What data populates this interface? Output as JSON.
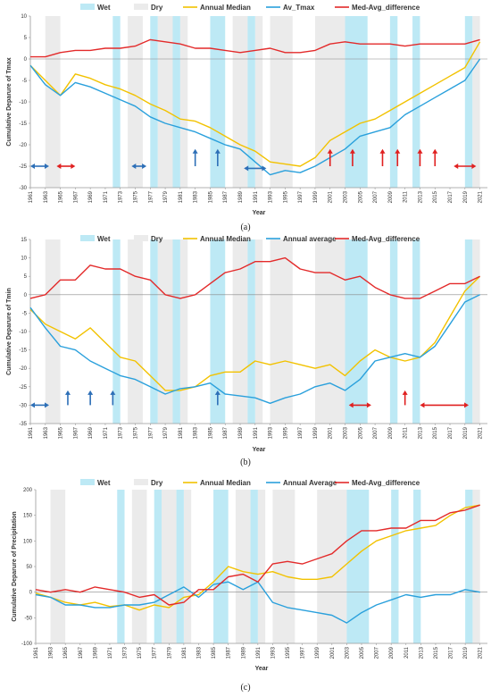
{
  "colors": {
    "wet": "#bde9f5",
    "dry": "#ebebeb",
    "median": "#f2c200",
    "average": "#2aa0dc",
    "difference": "#e32a2a",
    "blue_arrow": "#2d6fb7",
    "red_arrow": "#e02020"
  },
  "periods": {
    "wet": [
      [
        1972,
        1973
      ],
      [
        1977,
        1978
      ],
      [
        1980,
        1981
      ],
      [
        1985,
        1987
      ],
      [
        1990,
        1991
      ],
      [
        2003,
        2006
      ],
      [
        2009,
        2010
      ],
      [
        2012,
        2013
      ],
      [
        2019,
        2020
      ]
    ],
    "dry": [
      [
        1963,
        1965
      ],
      [
        1974,
        1976
      ],
      [
        1978,
        1980
      ],
      [
        1981,
        1982
      ],
      [
        1988,
        1990
      ],
      [
        1991,
        1992
      ],
      [
        1993,
        1996
      ],
      [
        1999,
        2003
      ],
      [
        2020,
        2021
      ]
    ]
  },
  "chart_data": [
    {
      "type": "line",
      "caption": "(a)",
      "ylabel": "Cumulative Deparure of Tmax",
      "xlabel": "Year",
      "ylim": [
        -30,
        10
      ],
      "yticks": [
        -30,
        -25,
        -20,
        -15,
        -10,
        -5,
        0,
        5,
        10
      ],
      "xlim": [
        1961,
        2022
      ],
      "xticks": [
        1961,
        1963,
        1965,
        1967,
        1969,
        1971,
        1973,
        1975,
        1977,
        1979,
        1981,
        1983,
        1985,
        1987,
        1989,
        1991,
        1993,
        1995,
        1997,
        1999,
        2001,
        2003,
        2005,
        2007,
        2009,
        2011,
        2013,
        2015,
        2017,
        2019,
        2021
      ],
      "legend": [
        "Wet",
        "Dry",
        "Annual Median",
        "Av_Tmax",
        "Med-Avg_difference"
      ],
      "x": [
        1961,
        1963,
        1965,
        1967,
        1969,
        1971,
        1973,
        1975,
        1977,
        1979,
        1981,
        1983,
        1985,
        1987,
        1989,
        1991,
        1993,
        1995,
        1997,
        1999,
        2001,
        2003,
        2005,
        2007,
        2009,
        2011,
        2013,
        2015,
        2017,
        2019,
        2021
      ],
      "series": [
        {
          "name": "Annual Median",
          "key": "median",
          "values": [
            -1.5,
            -5,
            -8.5,
            -3.5,
            -4.5,
            -6,
            -7,
            -8.5,
            -10.5,
            -12,
            -14,
            -14.5,
            -16,
            -18,
            -20,
            -21.5,
            -24,
            -24.5,
            -25,
            -23,
            -19,
            -17,
            -15,
            -14,
            -12,
            -10,
            -8,
            -6,
            -4,
            -2,
            4
          ]
        },
        {
          "name": "Av_Tmax",
          "key": "average",
          "values": [
            -1.5,
            -6,
            -8.5,
            -5.5,
            -6.5,
            -8,
            -9.5,
            -11,
            -13.5,
            -15,
            -16,
            -17,
            -18.5,
            -20,
            -21,
            -24,
            -27,
            -26,
            -26.5,
            -25,
            -23,
            -21,
            -18,
            -17,
            -16,
            -13,
            -11,
            -9,
            -7,
            -5,
            0
          ]
        },
        {
          "name": "Med-Avg_difference",
          "key": "difference",
          "values": [
            0.5,
            0.5,
            1.5,
            2,
            2,
            2.5,
            2.5,
            3,
            4.5,
            4,
            3.5,
            2.5,
            2.5,
            2,
            1.5,
            2,
            2.5,
            1.5,
            1.5,
            2,
            3.5,
            4,
            3.5,
            3.5,
            3.5,
            3,
            3.5,
            3.5,
            3.5,
            3.5,
            4.5
          ]
        }
      ],
      "arrows": [
        {
          "type": "h",
          "x1": 1961,
          "x2": 1963.5,
          "y": -25,
          "color": "blue_arrow",
          "both": true
        },
        {
          "type": "h",
          "x1": 1964.5,
          "x2": 1967,
          "y": -25,
          "color": "red_arrow",
          "both": true
        },
        {
          "type": "h",
          "x1": 1974.5,
          "x2": 1976.5,
          "y": -25,
          "color": "blue_arrow",
          "both": true
        },
        {
          "type": "v",
          "x": 1983,
          "y1": -25,
          "y2": -21,
          "color": "blue_arrow"
        },
        {
          "type": "v",
          "x": 1986,
          "y1": -25,
          "y2": -21,
          "color": "blue_arrow"
        },
        {
          "type": "h",
          "x1": 1989.5,
          "x2": 1992.5,
          "y": -25.5,
          "color": "blue_arrow",
          "both": true
        },
        {
          "type": "v",
          "x": 2001,
          "y1": -25,
          "y2": -21,
          "color": "red_arrow"
        },
        {
          "type": "v",
          "x": 2004,
          "y1": -25,
          "y2": -21,
          "color": "red_arrow"
        },
        {
          "type": "v",
          "x": 2008,
          "y1": -25,
          "y2": -21,
          "color": "red_arrow"
        },
        {
          "type": "v",
          "x": 2010,
          "y1": -25,
          "y2": -21,
          "color": "red_arrow"
        },
        {
          "type": "v",
          "x": 2013,
          "y1": -25,
          "y2": -21,
          "color": "red_arrow"
        },
        {
          "type": "v",
          "x": 2015,
          "y1": -25,
          "y2": -21,
          "color": "red_arrow"
        },
        {
          "type": "h",
          "x1": 2017.5,
          "x2": 2020.5,
          "y": -25,
          "color": "red_arrow",
          "both": true
        }
      ]
    },
    {
      "type": "line",
      "caption": "(b)",
      "ylabel": "Cumulative Deparure of Tmin",
      "xlabel": "Year",
      "ylim": [
        -35,
        15
      ],
      "yticks": [
        -35,
        -30,
        -25,
        -20,
        -15,
        -10,
        -5,
        0,
        5,
        10,
        15
      ],
      "xlim": [
        1961,
        2022
      ],
      "xticks": [
        1961,
        1963,
        1965,
        1967,
        1969,
        1971,
        1973,
        1975,
        1977,
        1979,
        1981,
        1983,
        1985,
        1987,
        1989,
        1991,
        1993,
        1995,
        1997,
        1999,
        2001,
        2003,
        2005,
        2007,
        2009,
        2011,
        2013,
        2015,
        2017,
        2019,
        2021
      ],
      "legend": [
        "Wet",
        "Dry",
        "Annual Median",
        "Annual average",
        "Med-Avg_difference"
      ],
      "x": [
        1961,
        1963,
        1965,
        1967,
        1969,
        1971,
        1973,
        1975,
        1977,
        1979,
        1981,
        1983,
        1985,
        1987,
        1989,
        1991,
        1993,
        1995,
        1997,
        1999,
        2001,
        2003,
        2005,
        2007,
        2009,
        2011,
        2013,
        2015,
        2017,
        2019,
        2021
      ],
      "series": [
        {
          "name": "Annual Median",
          "key": "median",
          "values": [
            -4,
            -8,
            -10,
            -12,
            -9,
            -13,
            -17,
            -18,
            -22,
            -26,
            -26,
            -25,
            -22,
            -21,
            -21,
            -18,
            -19,
            -18,
            -19,
            -20,
            -19,
            -22,
            -18,
            -15,
            -17,
            -18,
            -17,
            -13,
            -6,
            1,
            5
          ]
        },
        {
          "name": "Annual average",
          "key": "average",
          "values": [
            -3.5,
            -9,
            -14,
            -15,
            -18,
            -20,
            -22,
            -23,
            -25,
            -27,
            -25.5,
            -25,
            -24,
            -27,
            -27.5,
            -28,
            -29.5,
            -28,
            -27,
            -25,
            -24,
            -26,
            -23,
            -18,
            -17,
            -16,
            -17,
            -14,
            -8,
            -2,
            0
          ]
        },
        {
          "name": "Med-Avg_difference",
          "key": "difference",
          "values": [
            -1,
            0,
            4,
            4,
            8,
            7,
            7,
            5,
            4,
            0,
            -1,
            0,
            3,
            6,
            7,
            9,
            9,
            10,
            7,
            6,
            6,
            4,
            5,
            2,
            0,
            -1,
            -1,
            1,
            3,
            3,
            5
          ]
        }
      ],
      "arrows": [
        {
          "type": "h",
          "x1": 1961,
          "x2": 1963.5,
          "y": -30,
          "color": "blue_arrow",
          "both": true
        },
        {
          "type": "v",
          "x": 1966,
          "y1": -30,
          "y2": -26,
          "color": "blue_arrow"
        },
        {
          "type": "v",
          "x": 1969,
          "y1": -30,
          "y2": -26,
          "color": "blue_arrow"
        },
        {
          "type": "v",
          "x": 1972,
          "y1": -30,
          "y2": -26,
          "color": "blue_arrow"
        },
        {
          "type": "v",
          "x": 1986,
          "y1": -30,
          "y2": -26,
          "color": "blue_arrow"
        },
        {
          "type": "h",
          "x1": 2003.5,
          "x2": 2006.5,
          "y": -30,
          "color": "red_arrow",
          "both": true
        },
        {
          "type": "v",
          "x": 2011,
          "y1": -30,
          "y2": -26,
          "color": "red_arrow"
        },
        {
          "type": "h",
          "x1": 2013,
          "x2": 2019.5,
          "y": -30,
          "color": "red_arrow",
          "both": true
        }
      ]
    },
    {
      "type": "line",
      "caption": "(c)",
      "ylabel": "Cumulative Deparure of Precipitation",
      "xlabel": "Year",
      "ylim": [
        -100,
        200
      ],
      "yticks": [
        -100,
        -50,
        0,
        50,
        100,
        150,
        200
      ],
      "xlim": [
        1961,
        2022
      ],
      "xticks": [
        1961,
        1963,
        1965,
        1967,
        1969,
        1971,
        1973,
        1975,
        1977,
        1979,
        1981,
        1983,
        1985,
        1987,
        1989,
        1991,
        1993,
        1995,
        1997,
        1999,
        2001,
        2003,
        2005,
        2007,
        2009,
        2011,
        2013,
        2015,
        2017,
        2019,
        2021
      ],
      "legend": [
        "Wet",
        "Dry",
        "Annual Median",
        "Annual Average",
        "Med-Avg_difference"
      ],
      "x": [
        1961,
        1963,
        1965,
        1967,
        1969,
        1971,
        1973,
        1975,
        1977,
        1979,
        1981,
        1983,
        1985,
        1987,
        1989,
        1991,
        1993,
        1995,
        1997,
        1999,
        2001,
        2003,
        2005,
        2007,
        2009,
        2011,
        2013,
        2015,
        2017,
        2019,
        2021
      ],
      "series": [
        {
          "name": "Annual Median",
          "key": "median",
          "values": [
            -2,
            -10,
            -20,
            -25,
            -20,
            -28,
            -25,
            -35,
            -25,
            -30,
            -10,
            -5,
            20,
            50,
            40,
            35,
            40,
            30,
            25,
            25,
            30,
            55,
            80,
            100,
            110,
            120,
            125,
            130,
            150,
            165,
            170
          ]
        },
        {
          "name": "Annual Average",
          "key": "average",
          "values": [
            -5,
            -10,
            -25,
            -25,
            -30,
            -30,
            -25,
            -25,
            -20,
            -5,
            10,
            -10,
            15,
            20,
            5,
            20,
            -20,
            -30,
            -35,
            -40,
            -45,
            -60,
            -40,
            -25,
            -15,
            -5,
            -10,
            -5,
            -5,
            5,
            0
          ]
        },
        {
          "name": "Med-Avg_difference",
          "key": "difference",
          "values": [
            5,
            0,
            5,
            0,
            10,
            5,
            0,
            -10,
            -5,
            -25,
            -20,
            5,
            5,
            30,
            35,
            20,
            55,
            60,
            55,
            65,
            75,
            100,
            120,
            120,
            125,
            125,
            140,
            140,
            155,
            160,
            170
          ]
        }
      ],
      "arrows": []
    }
  ]
}
